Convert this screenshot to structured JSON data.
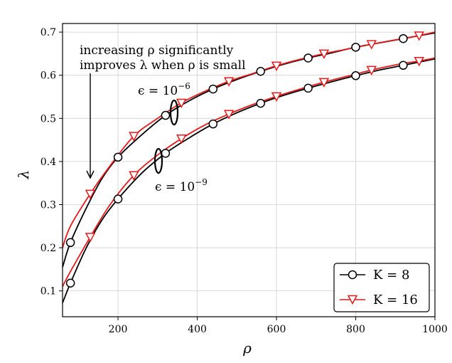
{
  "chart_data": {
    "type": "line",
    "xlabel": "ρ",
    "ylabel": "λ",
    "xlim": [
      60,
      1000
    ],
    "ylim": [
      0.04,
      0.72
    ],
    "xticks": [
      200,
      400,
      600,
      800,
      1000
    ],
    "yticks": [
      0.1,
      0.2,
      0.3,
      0.4,
      0.5,
      0.6,
      0.7
    ],
    "grid": true,
    "legend_position": "bottom-right",
    "annotation": {
      "line1": "increasing ρ significantly",
      "line2": "improves λ when ρ is small"
    },
    "group_labels": {
      "eps6": "ϵ = 10",
      "eps6_exp": "−6",
      "eps9": "ϵ = 10",
      "eps9_exp": "−9"
    },
    "legend": [
      {
        "name": "K = 8",
        "marker": "circle",
        "color": "#000000"
      },
      {
        "name": "K = 16",
        "marker": "triangle-down",
        "color": "#e41a1c"
      }
    ],
    "series": [
      {
        "name": "K = 8, ϵ = 10^-6",
        "color": "#000000",
        "marker": "circle",
        "x": [
          60,
          80,
          120,
          160,
          200,
          260,
          320,
          380,
          440,
          500,
          560,
          620,
          680,
          740,
          800,
          860,
          920,
          1000
        ],
        "y": [
          0.155,
          0.212,
          0.292,
          0.361,
          0.41,
          0.462,
          0.507,
          0.541,
          0.568,
          0.59,
          0.609,
          0.626,
          0.64,
          0.652,
          0.665,
          0.675,
          0.685,
          0.698
        ],
        "markers_x": [
          80,
          200,
          320,
          440,
          560,
          680,
          800,
          920
        ],
        "markers_y": [
          0.212,
          0.41,
          0.507,
          0.568,
          0.609,
          0.64,
          0.665,
          0.685
        ]
      },
      {
        "name": "K = 16, ϵ = 10^-6",
        "color": "#e41a1c",
        "marker": "triangle-down",
        "x": [
          60,
          80,
          130,
          180,
          240,
          300,
          360,
          420,
          480,
          540,
          600,
          660,
          720,
          780,
          840,
          900,
          960,
          1000
        ],
        "y": [
          0.2,
          0.25,
          0.325,
          0.39,
          0.459,
          0.5,
          0.536,
          0.563,
          0.586,
          0.604,
          0.622,
          0.637,
          0.65,
          0.661,
          0.672,
          0.682,
          0.692,
          0.7
        ],
        "markers_x": [
          130,
          240,
          360,
          480,
          600,
          720,
          840,
          960
        ],
        "markers_y": [
          0.325,
          0.459,
          0.536,
          0.586,
          0.622,
          0.65,
          0.672,
          0.692
        ]
      },
      {
        "name": "K = 8, ϵ = 10^-9",
        "color": "#000000",
        "marker": "circle",
        "x": [
          60,
          80,
          120,
          160,
          200,
          260,
          320,
          380,
          440,
          500,
          560,
          620,
          680,
          740,
          800,
          860,
          920,
          1000
        ],
        "y": [
          0.072,
          0.118,
          0.2,
          0.265,
          0.313,
          0.373,
          0.419,
          0.455,
          0.487,
          0.513,
          0.535,
          0.554,
          0.57,
          0.585,
          0.599,
          0.612,
          0.623,
          0.638
        ],
        "markers_x": [
          80,
          200,
          320,
          440,
          560,
          680,
          800,
          920
        ],
        "markers_y": [
          0.118,
          0.313,
          0.419,
          0.487,
          0.535,
          0.57,
          0.599,
          0.623
        ]
      },
      {
        "name": "K = 16, ϵ = 10^-9",
        "color": "#e41a1c",
        "marker": "triangle-down",
        "x": [
          60,
          80,
          130,
          180,
          240,
          300,
          360,
          420,
          480,
          540,
          600,
          660,
          720,
          780,
          840,
          900,
          960,
          1000
        ],
        "y": [
          0.11,
          0.145,
          0.225,
          0.3,
          0.368,
          0.415,
          0.453,
          0.485,
          0.51,
          0.532,
          0.551,
          0.568,
          0.584,
          0.598,
          0.612,
          0.624,
          0.633,
          0.64
        ],
        "markers_x": [
          130,
          240,
          360,
          480,
          600,
          720,
          840,
          960
        ],
        "markers_y": [
          0.225,
          0.368,
          0.453,
          0.51,
          0.551,
          0.584,
          0.612,
          0.633
        ]
      }
    ]
  }
}
